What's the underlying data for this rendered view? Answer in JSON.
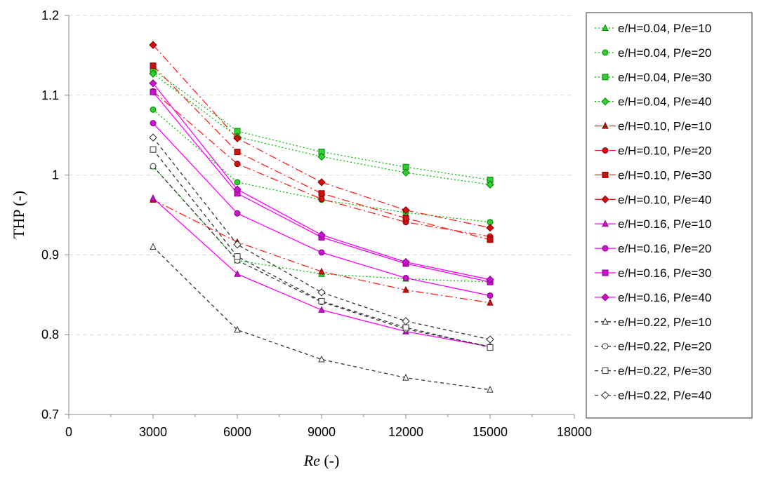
{
  "chart_data": {
    "type": "line",
    "title": "",
    "xlabel": "Re",
    "xlabel_suffix": " (-)",
    "ylabel": "THP (-)",
    "xlim": [
      0,
      18000
    ],
    "ylim": [
      0.7,
      1.2
    ],
    "xticks": [
      0,
      3000,
      6000,
      9000,
      12000,
      15000,
      18000
    ],
    "xtick_labels": [
      "0",
      "3000",
      "6000",
      "9000",
      "12000",
      "15000",
      "18000"
    ],
    "yticks": [
      0.7,
      0.8,
      0.9,
      1.0,
      1.1,
      1.2
    ],
    "ytick_labels": [
      "0.7",
      "0.8",
      "0.9",
      "1",
      "1.1",
      "1.2"
    ],
    "grid": true,
    "legend_position": "right",
    "x": [
      3000,
      6000,
      9000,
      12000,
      15000
    ],
    "series": [
      {
        "name": "e/H=0.04, P/e=10",
        "values": [
          1.011,
          0.893,
          0.876,
          0.87,
          0.866
        ],
        "color": "#00c000",
        "marker_fill": "#33cc33",
        "marker_stroke": "#008800",
        "marker": "triangle",
        "line": "dotted"
      },
      {
        "name": "e/H=0.04, P/e=20",
        "values": [
          1.082,
          0.991,
          0.969,
          0.953,
          0.941
        ],
        "color": "#00c000",
        "marker_fill": "#33cc33",
        "marker_stroke": "#008800",
        "marker": "circle",
        "line": "dotted"
      },
      {
        "name": "e/H=0.04, P/e=30",
        "values": [
          1.132,
          1.055,
          1.029,
          1.01,
          0.994
        ],
        "color": "#00c000",
        "marker_fill": "#33cc33",
        "marker_stroke": "#008800",
        "marker": "square",
        "line": "dotted"
      },
      {
        "name": "e/H=0.04, P/e=40",
        "values": [
          1.127,
          1.048,
          1.023,
          1.003,
          0.988
        ],
        "color": "#00c000",
        "marker_fill": "#33cc33",
        "marker_stroke": "#008800",
        "marker": "diamond",
        "line": "dotted"
      },
      {
        "name": "e/H=0.10, P/e=10",
        "values": [
          0.969,
          0.916,
          0.879,
          0.856,
          0.84
        ],
        "color": "#ff2020",
        "marker_fill": "#cc1111",
        "marker_stroke": "#880000",
        "marker": "triangle",
        "line": "dashdot"
      },
      {
        "name": "e/H=0.10, P/e=20",
        "values": [
          1.105,
          1.014,
          0.97,
          0.941,
          0.923
        ],
        "color": "#ff2020",
        "marker_fill": "#cc1111",
        "marker_stroke": "#880000",
        "marker": "circle",
        "line": "dashdot"
      },
      {
        "name": "e/H=0.10, P/e=30",
        "values": [
          1.137,
          1.029,
          0.977,
          0.946,
          0.919
        ],
        "color": "#ff2020",
        "marker_fill": "#cc1111",
        "marker_stroke": "#880000",
        "marker": "square",
        "line": "dashdot"
      },
      {
        "name": "e/H=0.10, P/e=40",
        "values": [
          1.163,
          1.046,
          0.991,
          0.956,
          0.934
        ],
        "color": "#ff2020",
        "marker_fill": "#cc1111",
        "marker_stroke": "#880000",
        "marker": "diamond",
        "line": "dashdot"
      },
      {
        "name": "e/H=0.16, P/e=10",
        "values": [
          0.971,
          0.876,
          0.831,
          0.804,
          0.785
        ],
        "color": "#ff00ff",
        "marker_fill": "#cc11cc",
        "marker_stroke": "#880088",
        "marker": "triangle",
        "line": "solid"
      },
      {
        "name": "e/H=0.16, P/e=20",
        "values": [
          1.065,
          0.952,
          0.903,
          0.871,
          0.849
        ],
        "color": "#ff00ff",
        "marker_fill": "#cc11cc",
        "marker_stroke": "#880088",
        "marker": "circle",
        "line": "solid"
      },
      {
        "name": "e/H=0.16, P/e=30",
        "values": [
          1.104,
          0.977,
          0.922,
          0.889,
          0.866
        ],
        "color": "#ff00ff",
        "marker_fill": "#cc11cc",
        "marker_stroke": "#880088",
        "marker": "square",
        "line": "solid"
      },
      {
        "name": "e/H=0.16, P/e=40",
        "values": [
          1.115,
          0.982,
          0.925,
          0.891,
          0.869
        ],
        "color": "#ff00ff",
        "marker_fill": "#cc11cc",
        "marker_stroke": "#880088",
        "marker": "diamond",
        "line": "solid"
      },
      {
        "name": "e/H=0.22, P/e=10",
        "values": [
          0.91,
          0.806,
          0.769,
          0.746,
          0.731
        ],
        "color": "#333333",
        "marker_fill": "#ffffff",
        "marker_stroke": "#333333",
        "marker": "triangle",
        "line": "dashed"
      },
      {
        "name": "e/H=0.22, P/e=20",
        "values": [
          1.011,
          0.893,
          0.841,
          0.807,
          0.785
        ],
        "color": "#333333",
        "marker_fill": "#ffffff",
        "marker_stroke": "#333333",
        "marker": "circle",
        "line": "dashed"
      },
      {
        "name": "e/H=0.22, P/e=30",
        "values": [
          1.032,
          0.898,
          0.842,
          0.809,
          0.784
        ],
        "color": "#333333",
        "marker_fill": "#ffffff",
        "marker_stroke": "#333333",
        "marker": "square",
        "line": "dashed"
      },
      {
        "name": "e/H=0.22, P/e=40",
        "values": [
          1.047,
          0.913,
          0.853,
          0.817,
          0.794
        ],
        "color": "#333333",
        "marker_fill": "#ffffff",
        "marker_stroke": "#333333",
        "marker": "diamond",
        "line": "dashed"
      }
    ]
  }
}
